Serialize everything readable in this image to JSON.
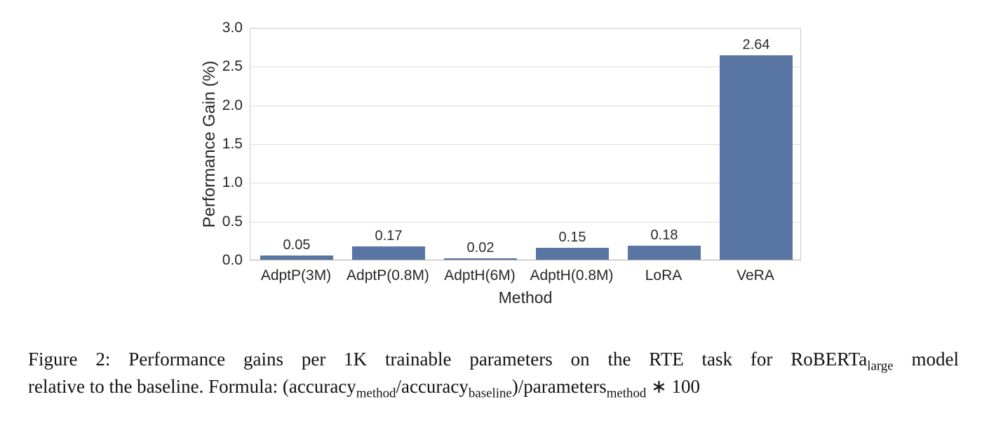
{
  "chart_data": {
    "type": "bar",
    "categories": [
      "AdptP(3M)",
      "AdptP(0.8M)",
      "AdptH(6M)",
      "AdptH(0.8M)",
      "LoRA",
      "VeRA"
    ],
    "values": [
      0.05,
      0.17,
      0.02,
      0.15,
      0.18,
      2.64
    ],
    "bar_labels": [
      "0.05",
      "0.17",
      "0.02",
      "0.15",
      "0.18",
      "2.64"
    ],
    "title": "",
    "xlabel": "Method",
    "ylabel": "Performance Gain (%)",
    "ylim": [
      0,
      3.0
    ],
    "yticks": [
      0.0,
      0.5,
      1.0,
      1.5,
      2.0,
      2.5,
      3.0
    ],
    "ytick_labels": [
      "0.0",
      "0.5",
      "1.0",
      "1.5",
      "2.0",
      "2.5",
      "3.0"
    ],
    "grid": "horizontal-only",
    "legend": "none",
    "bar_color": "#5875a4",
    "gridline_color": "#dcdcdc",
    "spine_color": "#c9c9c9"
  },
  "caption": {
    "line1": [
      {
        "t": "Figure 2: Performance gains per 1K trainable parameters on the RTE task for RoBERTa",
        "sub": false
      },
      {
        "t": "large",
        "sub": true
      },
      {
        "t": " model",
        "sub": false
      }
    ],
    "line2": [
      {
        "t": "relative to the baseline. Formula: (accuracy",
        "sub": false
      },
      {
        "t": "method",
        "sub": true
      },
      {
        "t": "/accuracy",
        "sub": false
      },
      {
        "t": "baseline",
        "sub": true
      },
      {
        "t": ")/parameters",
        "sub": false
      },
      {
        "t": "method",
        "sub": true
      },
      {
        "t": " ∗ 100",
        "sub": false
      }
    ]
  }
}
